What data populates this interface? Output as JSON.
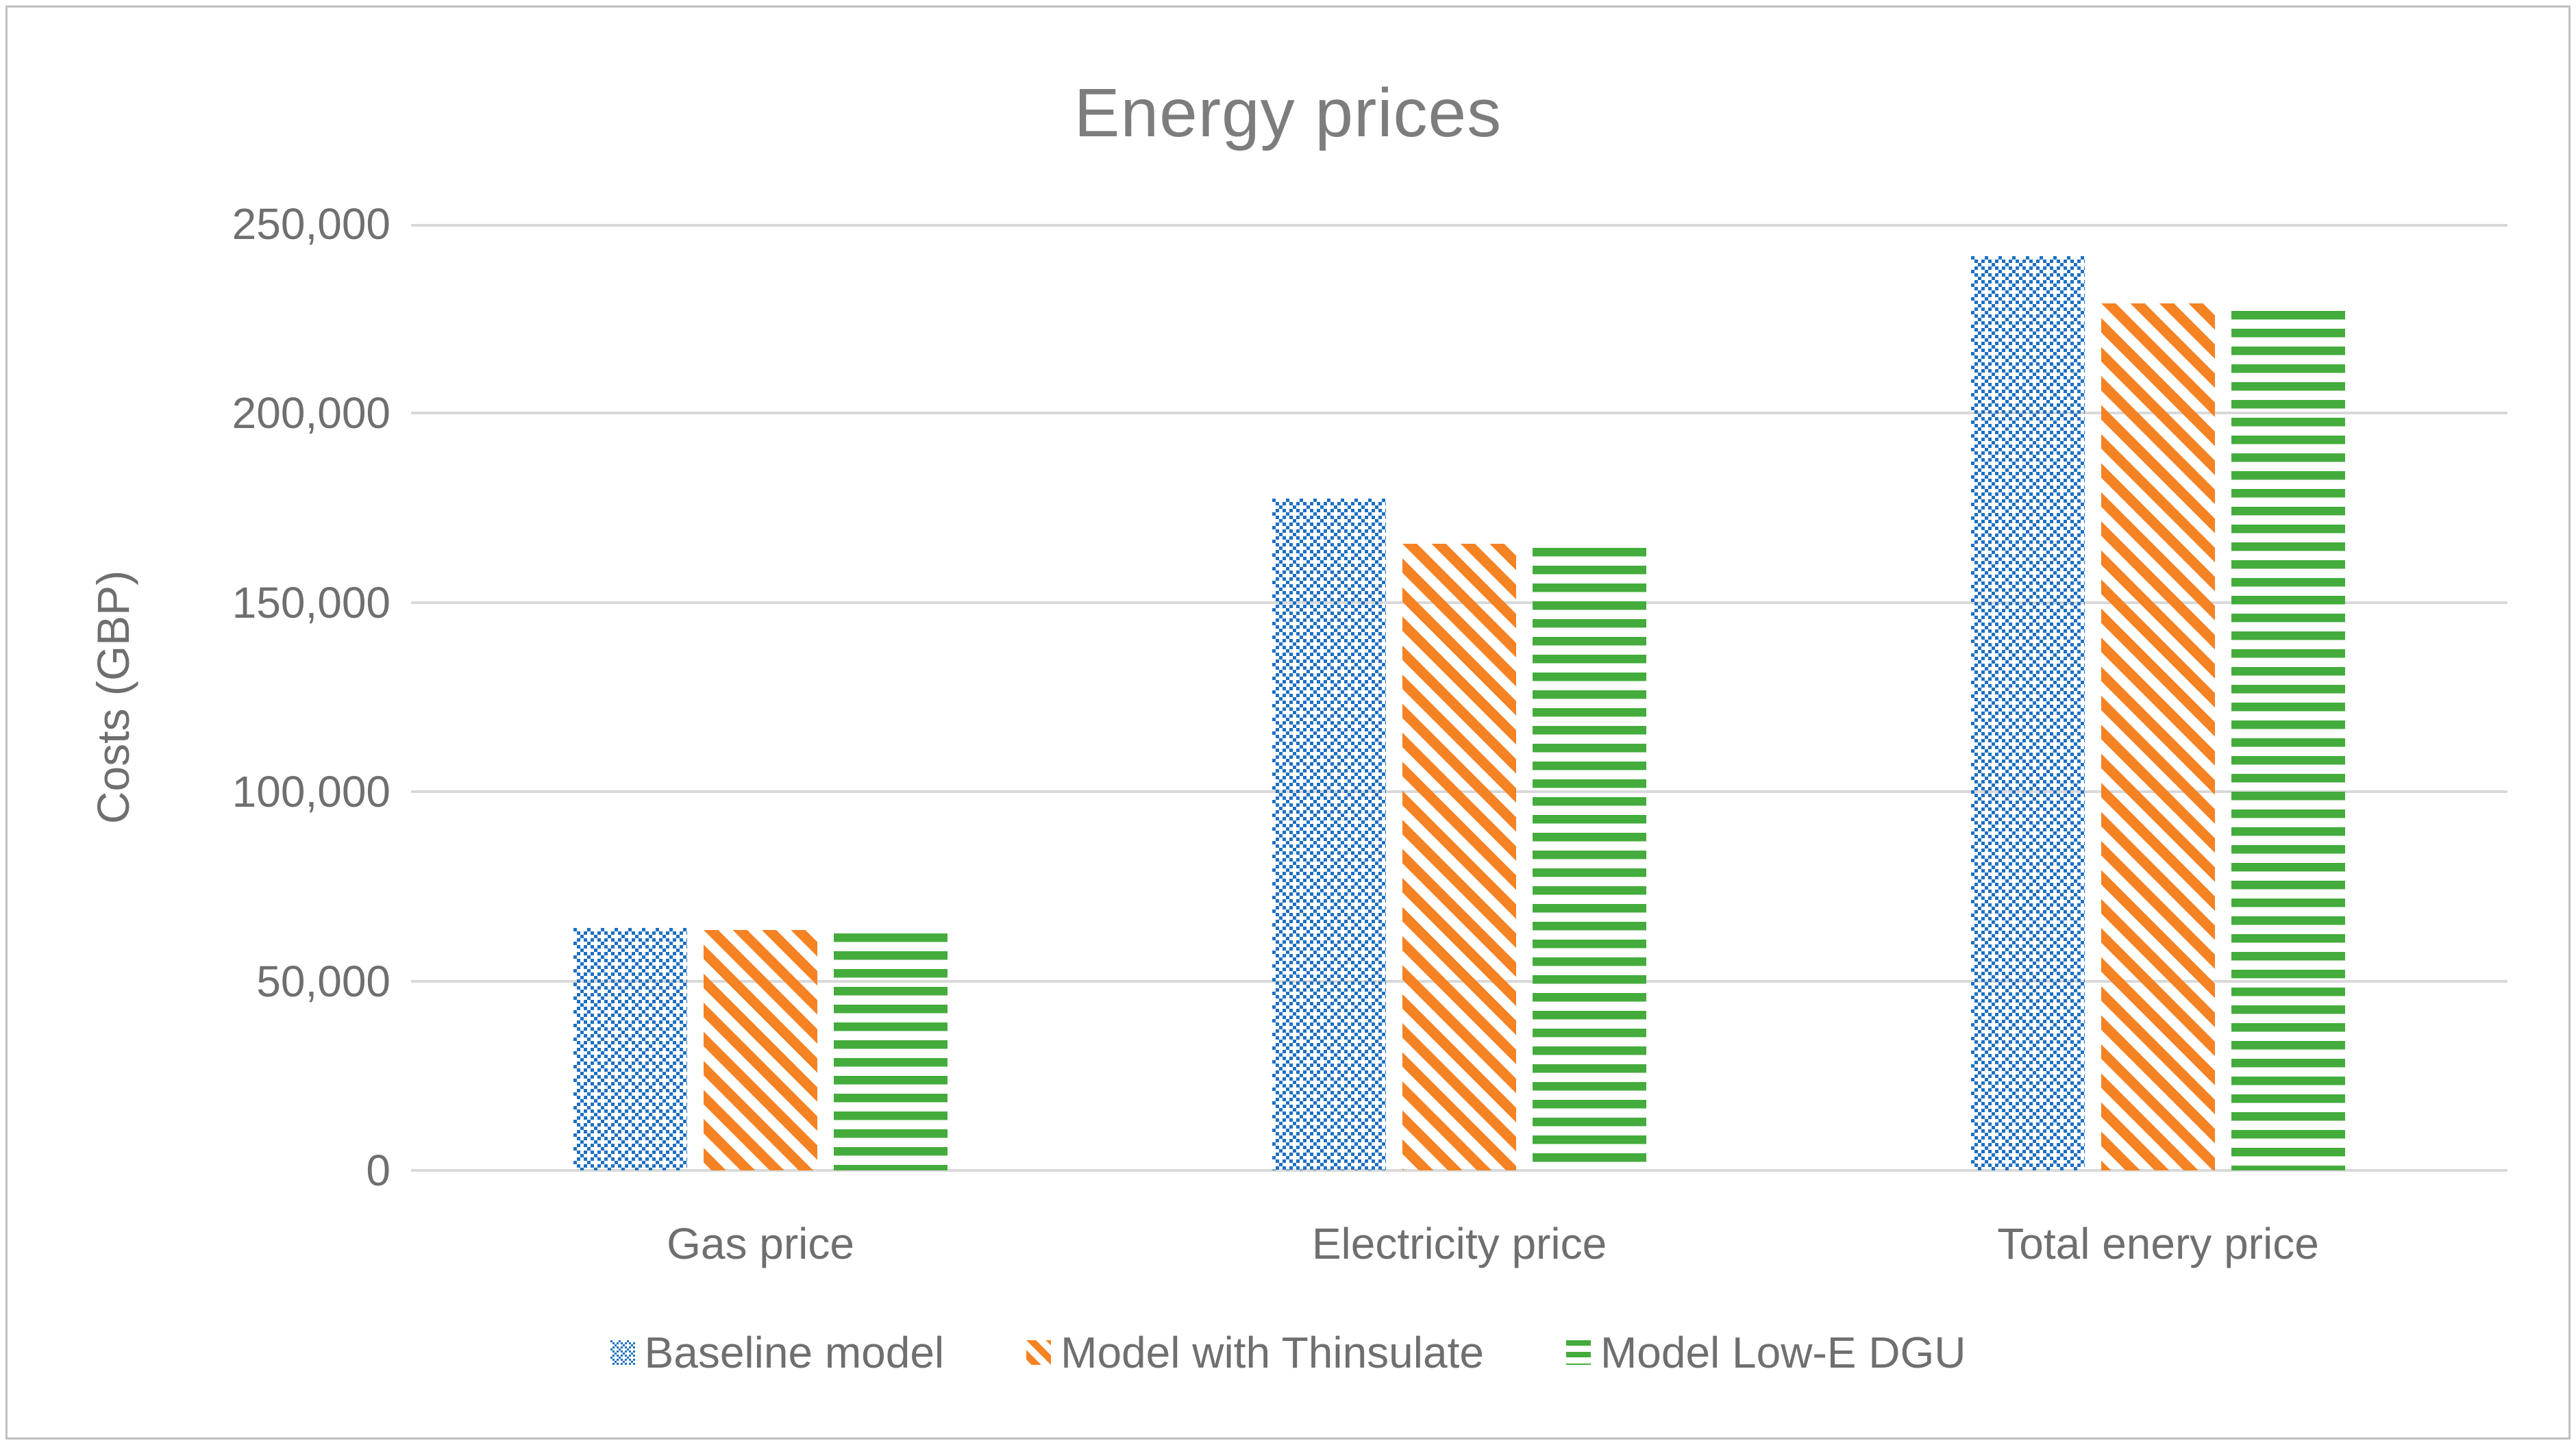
{
  "chart_data": {
    "type": "bar",
    "title": "Energy prices",
    "ylabel": "Costs (GBP)",
    "categories": [
      "Gas price",
      "Electricity price",
      "Total enery price"
    ],
    "series": [
      {
        "name": "Baseline model",
        "color": "#1E70C2",
        "pattern": "dotted-diamond-checker",
        "values": [
          64000,
          177500,
          241500
        ]
      },
      {
        "name": "Model with Thinsulate",
        "color": "#F58223",
        "pattern": "downward-diagonal-stripes",
        "values": [
          63500,
          165500,
          229000
        ]
      },
      {
        "name": "Model Low-E DGU",
        "color": "#44AC3C",
        "pattern": "horizontal-stripes",
        "values": [
          62500,
          164500,
          227000
        ]
      }
    ],
    "ylim": [
      0,
      250000
    ],
    "yticks": [
      {
        "value": 0,
        "label": "0"
      },
      {
        "value": 50000,
        "label": "50,000"
      },
      {
        "value": 100000,
        "label": "100,000"
      },
      {
        "value": 150000,
        "label": "150,000"
      },
      {
        "value": 200000,
        "label": "200,000"
      },
      {
        "value": 250000,
        "label": "250,000"
      }
    ],
    "grid": "horizontal",
    "legend_position": "bottom",
    "style": {
      "gridline_color": "#D9D9D9",
      "axis_text_color": "#6F6F6F",
      "title_color": "#7D7D7D",
      "border_color": "#BFBFBF",
      "background": "#FFFFFF"
    }
  }
}
